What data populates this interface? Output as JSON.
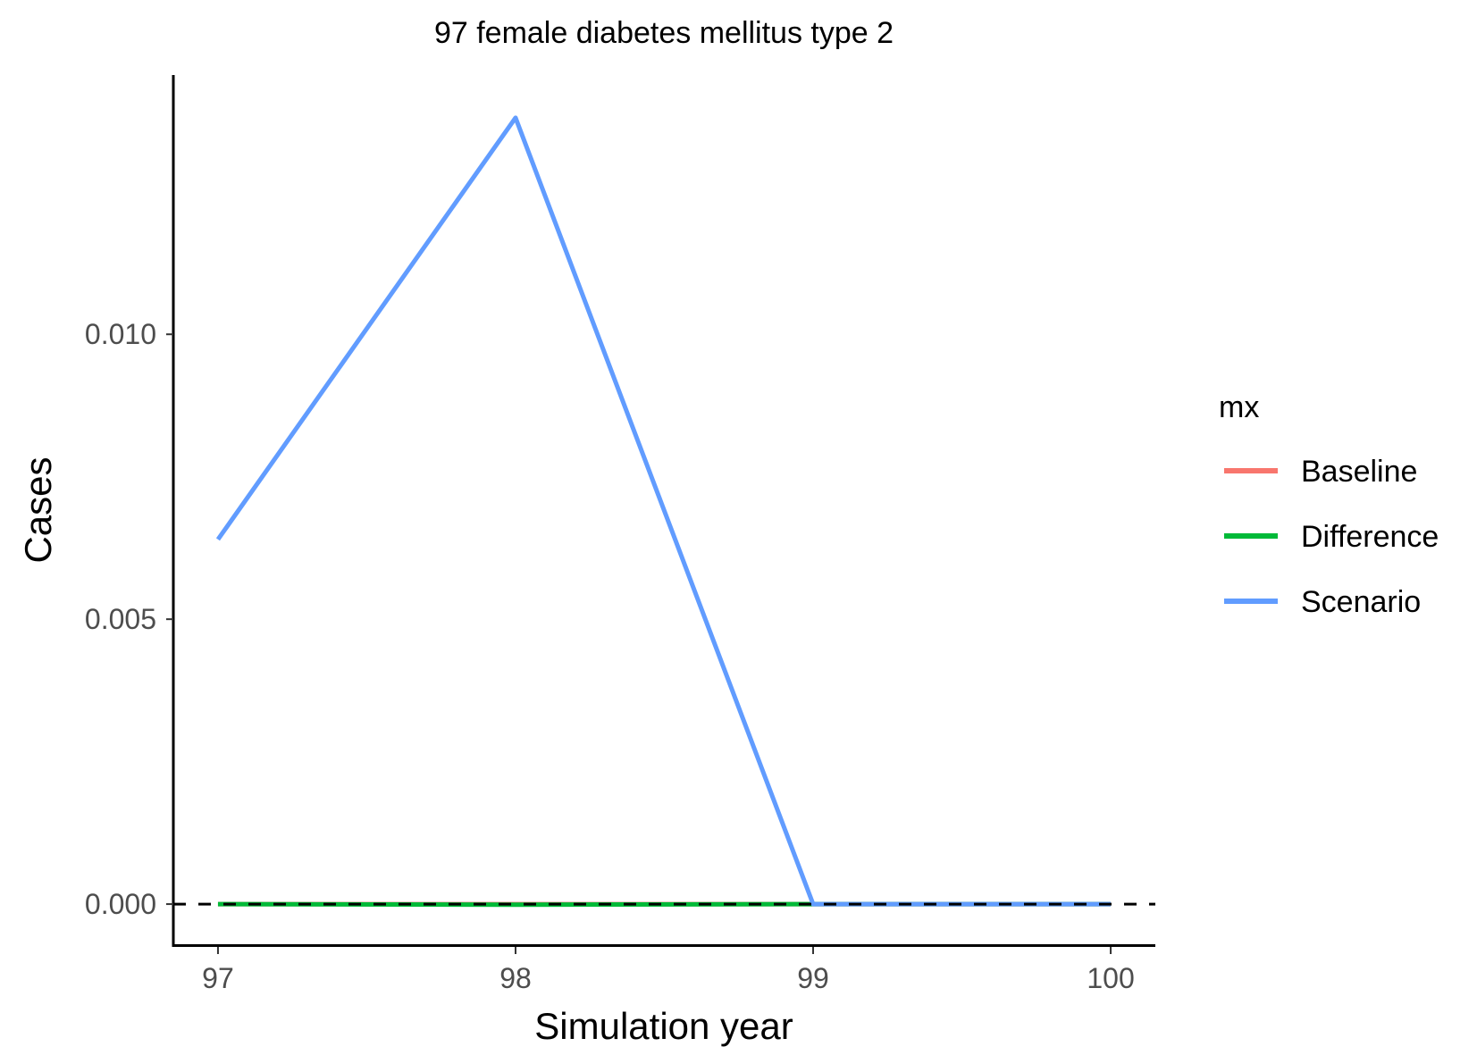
{
  "chart_data": {
    "type": "line",
    "title": "97 female diabetes mellitus type 2",
    "xlabel": "Simulation year",
    "ylabel": "Cases",
    "x": [
      97,
      98,
      99,
      100
    ],
    "x_ticks": [
      97,
      98,
      99,
      100
    ],
    "x_tick_labels": [
      "97",
      "98",
      "99",
      "100"
    ],
    "y_ticks": [
      0,
      0.005,
      0.01
    ],
    "y_tick_labels": [
      "0.000",
      "0.005",
      "0.010"
    ],
    "xlim": [
      96.85,
      100.15
    ],
    "ylim": [
      -0.00072,
      0.01455
    ],
    "reference_line": {
      "y": 0,
      "style": "dashed",
      "color": "#000000"
    },
    "legend": {
      "title": "mx",
      "position": "right"
    },
    "series": [
      {
        "name": "Baseline",
        "color": "#F8766D",
        "values": [
          0,
          0,
          0,
          0
        ]
      },
      {
        "name": "Difference",
        "color": "#00BA38",
        "values": [
          0,
          -1e-05,
          0,
          0
        ]
      },
      {
        "name": "Scenario",
        "color": "#619CFF",
        "values": [
          0.0064,
          0.0138,
          0,
          0
        ]
      }
    ]
  }
}
